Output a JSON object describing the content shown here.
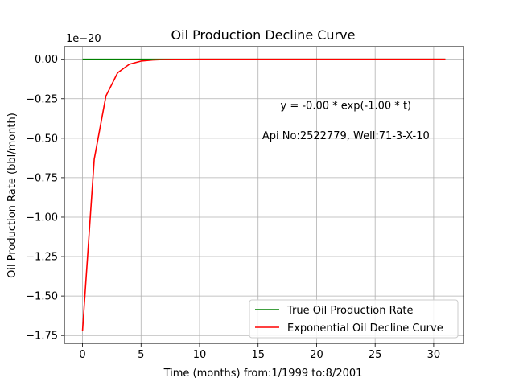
{
  "chart_data": {
    "type": "line",
    "title": "Oil Production Decline Curve",
    "xlabel": "Time (months) from:1/1999 to:8/2001",
    "ylabel": "Oil Production Rate (bbl/month)",
    "offset_label": "1e−20",
    "xlim": [
      -1.55,
      32.55
    ],
    "ylim": [
      -1.8,
      0.08
    ],
    "x_ticks": [
      0,
      5,
      10,
      15,
      20,
      25,
      30
    ],
    "x_tick_labels": [
      "0",
      "5",
      "10",
      "15",
      "20",
      "25",
      "30"
    ],
    "y_ticks": [
      0.0,
      -0.25,
      -0.5,
      -0.75,
      -1.0,
      -1.25,
      -1.5,
      -1.75
    ],
    "y_tick_labels": [
      "0.00",
      "−0.25",
      "−0.50",
      "−0.75",
      "−1.00",
      "−1.25",
      "−1.50",
      "−1.75"
    ],
    "grid": true,
    "legend_position": "lower-right",
    "annotations": [
      {
        "text": "y = -0.00 * exp(-1.00 * t)",
        "x": 22.5,
        "y": -0.29
      },
      {
        "text": "Api No:2522779, Well:71-3-X-10",
        "x": 22.5,
        "y": -0.48
      }
    ],
    "series": [
      {
        "name": "True Oil Production Rate",
        "color": "#008000",
        "x": [
          0,
          31
        ],
        "y": [
          0,
          0
        ]
      },
      {
        "name": "Exponential Oil Decline Curve",
        "color": "#ff0000",
        "x": [
          0,
          1,
          2,
          3,
          4,
          5,
          6,
          7,
          8,
          9,
          10,
          11,
          12,
          13,
          14,
          15,
          16,
          17,
          18,
          19,
          20,
          21,
          22,
          23,
          24,
          25,
          26,
          27,
          28,
          29,
          30,
          31
        ],
        "y": [
          -1.72,
          -0.633,
          -0.233,
          -0.0856,
          -0.0315,
          -0.0116,
          -0.00426,
          -0.00157,
          -0.00058,
          -0.00021,
          -8e-05,
          -3e-05,
          -1e-05,
          0,
          0,
          0,
          0,
          0,
          0,
          0,
          0,
          0,
          0,
          0,
          0,
          0,
          0,
          0,
          0,
          0,
          0,
          0
        ]
      }
    ]
  }
}
